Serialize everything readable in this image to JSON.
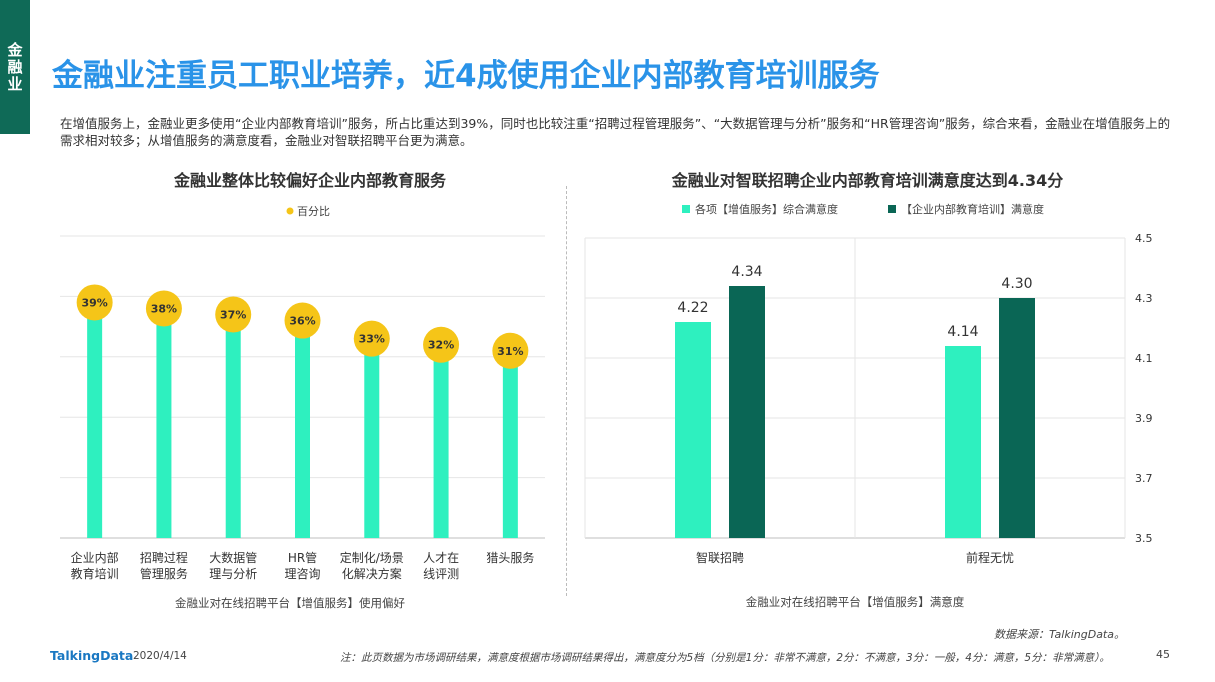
{
  "side_tab": "金融业",
  "title": "金融业注重员工职业培养，近4成使用企业内部教育培训服务",
  "intro": "在增值服务上，金融业更多使用“企业内部教育培训”服务，所占比重达到39%，同时也比较注重“招聘过程管理服务”、“大数据管理与分析”服务和“HR管理咨询”服务，综合来看，金融业在增值服务上的需求相对较多；从增值服务的满意度看，金融业对智联招聘平台更为满意。",
  "left_panel": {
    "title": "金融业整体比较偏好企业内部教育服务",
    "caption": "金融业对在线招聘平台【增值服务】使用偏好"
  },
  "right_panel": {
    "title": "金融业对智联招聘企业内部教育培训满意度达到4.34分",
    "caption": "金融业对在线招聘平台【增值服务】满意度"
  },
  "chart_data": [
    {
      "type": "bar",
      "title": "金融业整体比较偏好企业内部教育服务",
      "legend": [
        "百分比"
      ],
      "legend_position": "top-center",
      "categories": [
        [
          "企业内部",
          "教育培训"
        ],
        [
          "招聘过程",
          "管理服务"
        ],
        [
          "大数据管",
          "理与分析"
        ],
        [
          "HR管",
          "理咨询"
        ],
        [
          "定制化/场景",
          "化解决方案"
        ],
        [
          "人才在",
          "线评测"
        ],
        [
          "猎头服务"
        ]
      ],
      "values": [
        39,
        38,
        37,
        36,
        33,
        32,
        31
      ],
      "value_labels": [
        "39%",
        "38%",
        "37%",
        "36%",
        "33%",
        "32%",
        "31%"
      ],
      "ylim": [
        0,
        50
      ],
      "grid": true,
      "bar_color": "#2ef0bf",
      "marker_color": "#f5c518"
    },
    {
      "type": "bar",
      "title": "金融业对智联招聘企业内部教育培训满意度达到4.34分",
      "categories": [
        "智联招聘",
        "前程无忧"
      ],
      "series": [
        {
          "name": "各项【增值服务】综合满意度",
          "values": [
            4.22,
            4.14
          ],
          "labels": [
            "4.22",
            "4.14"
          ],
          "color": "#2ef0bf"
        },
        {
          "name": "【企业内部教育培训】满意度",
          "values": [
            4.34,
            4.3
          ],
          "labels": [
            "4.34",
            "4.30"
          ],
          "color": "#0a6655"
        }
      ],
      "ylim": [
        3.5,
        4.5
      ],
      "y_ticks": [
        "4.5",
        "4.3",
        "4.1",
        "3.9",
        "3.7",
        "3.5"
      ],
      "y_tick_values": [
        4.5,
        4.3,
        4.1,
        3.9,
        3.7,
        3.5
      ],
      "y_axis_side": "right",
      "legend_position": "top-center",
      "grid": true
    }
  ],
  "footer": {
    "source": "数据来源：TalkingData。",
    "note": "注：此页数据为市场调研结果，满意度根据市场调研结果得出，满意度分为5档（分别是1分：非常不满意，2分：不满意，3分：一般，4分：满意，5分：非常满意）。",
    "logo": "TalkingData",
    "date": "2020/4/14",
    "page": "45"
  }
}
